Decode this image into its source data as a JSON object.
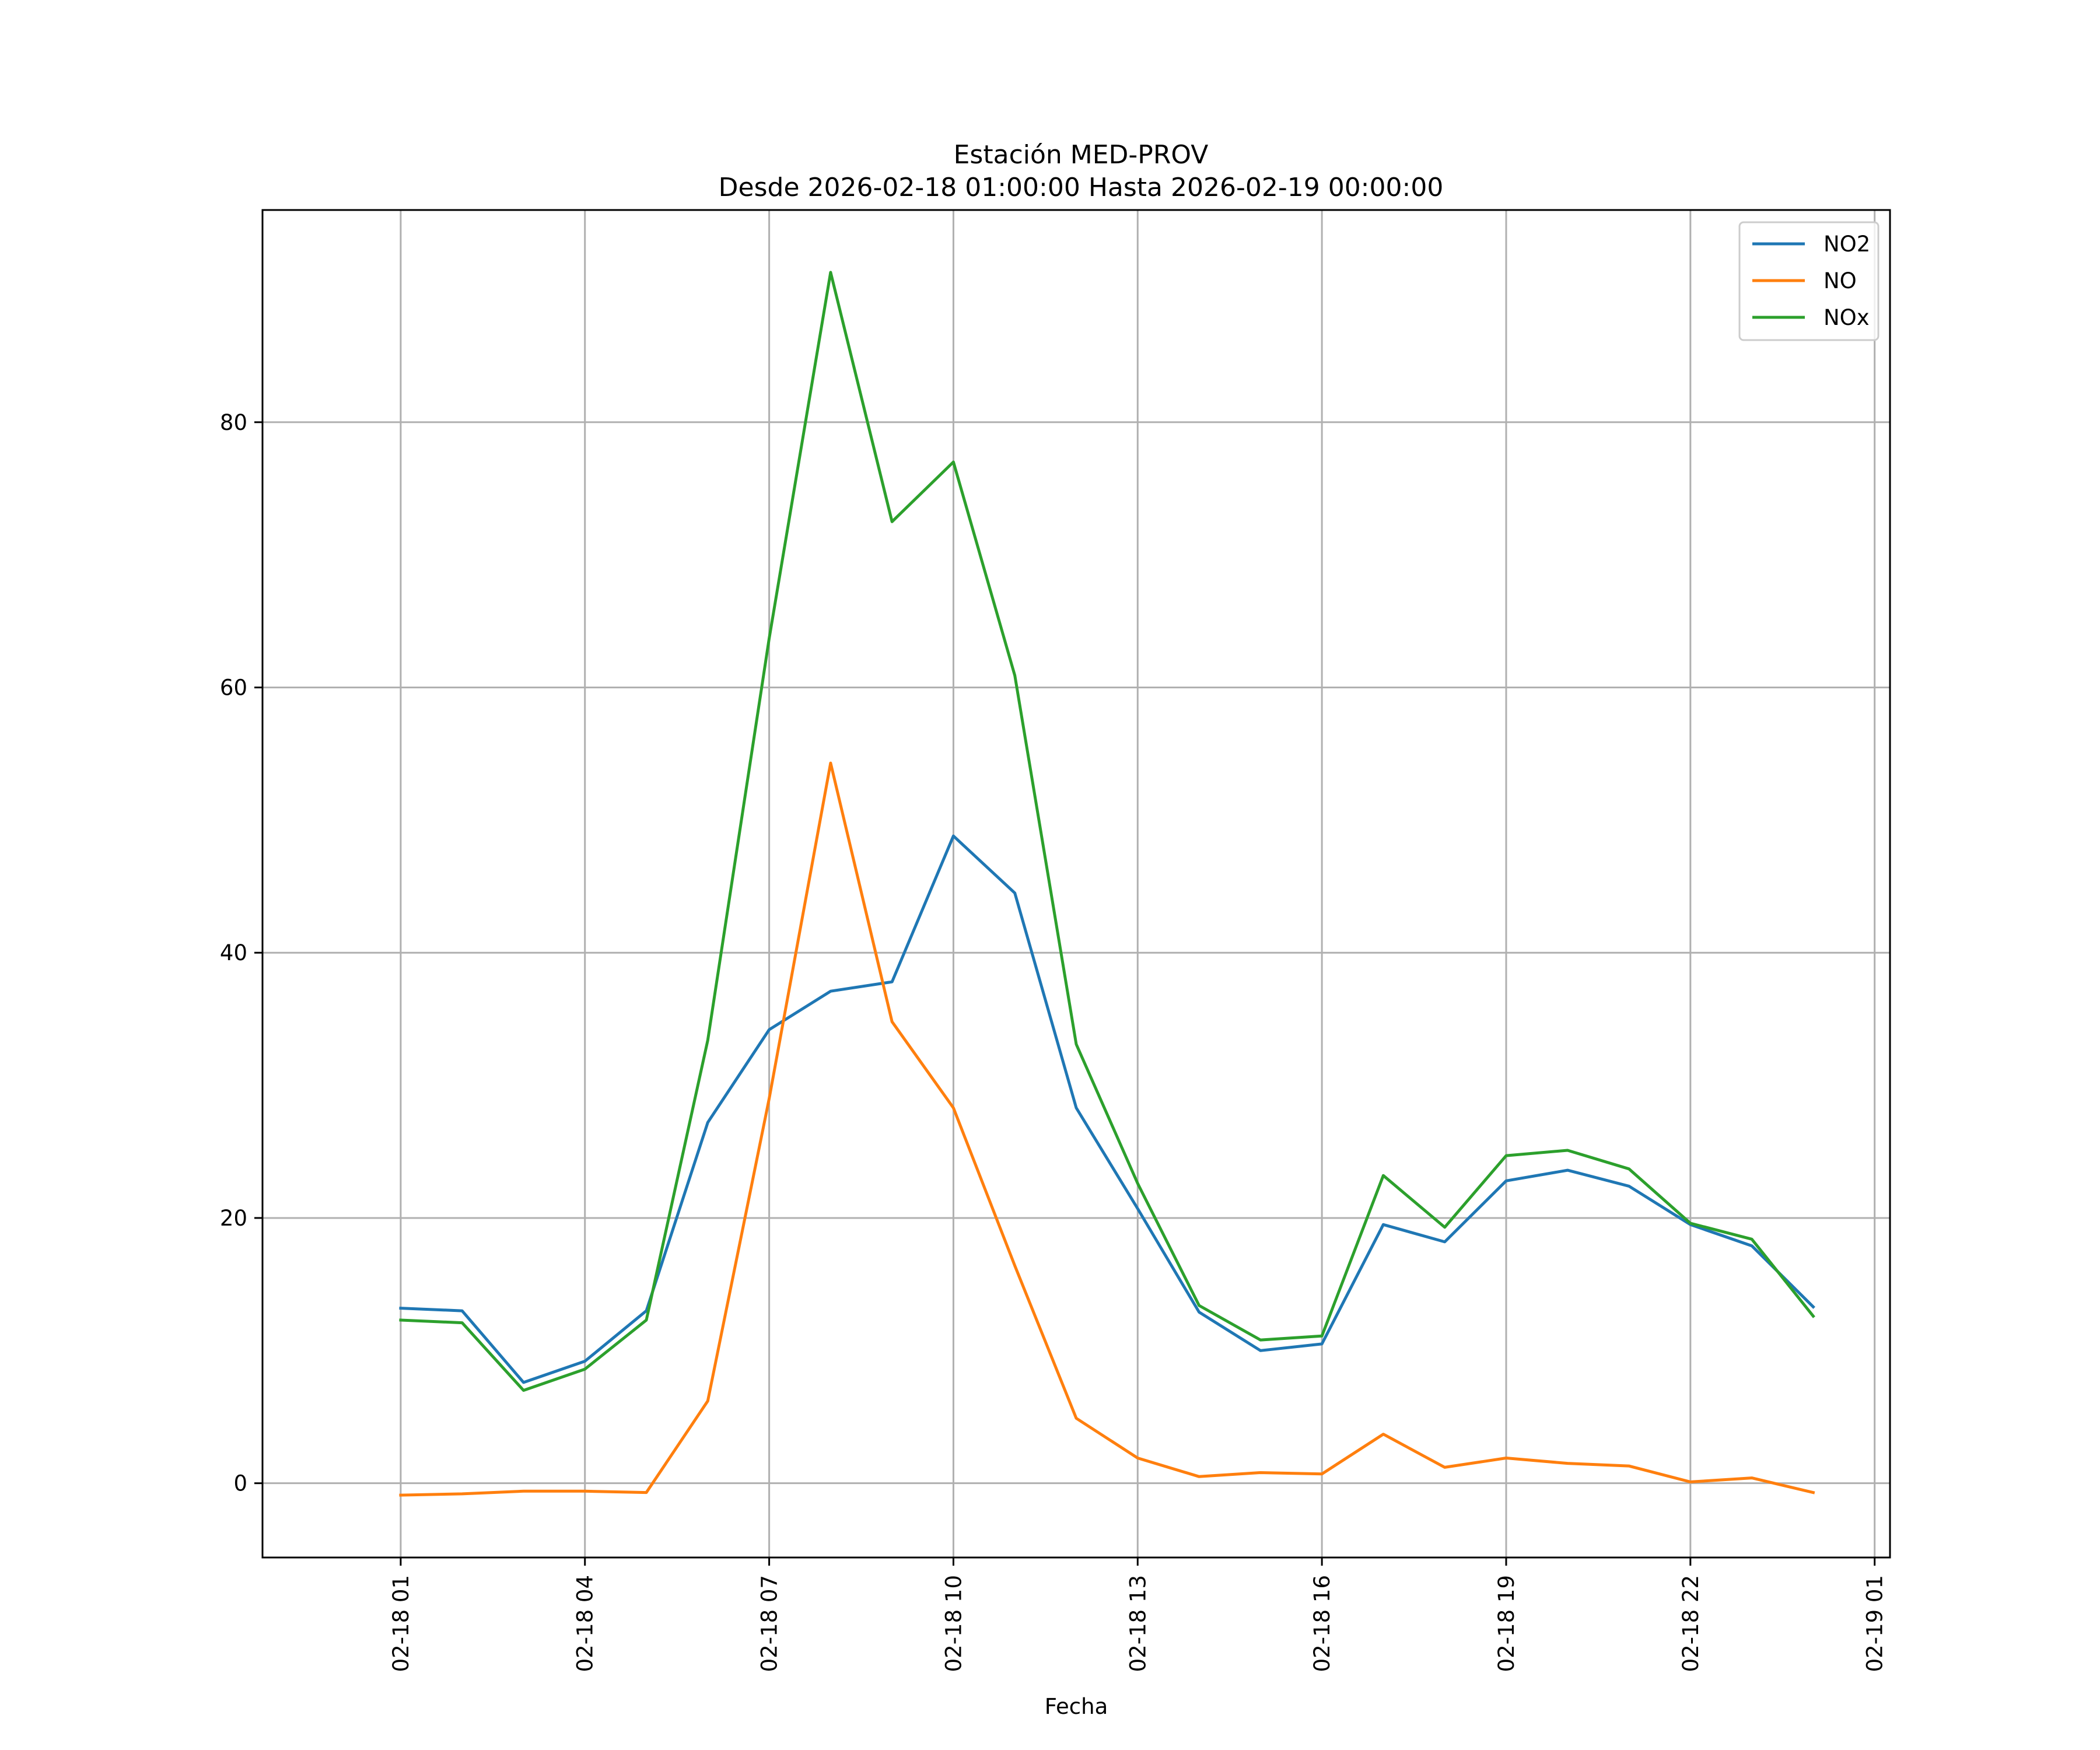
{
  "chart_data": {
    "type": "line",
    "title": "Estación MED-PROV",
    "subtitle": "Desde 2026-02-18 01:00:00 Hasta 2026-02-19 00:00:00",
    "xlabel": "Fecha",
    "ylabel": "",
    "x": [
      "2026-02-18 01:00",
      "2026-02-18 02:00",
      "2026-02-18 03:00",
      "2026-02-18 04:00",
      "2026-02-18 05:00",
      "2026-02-18 06:00",
      "2026-02-18 07:00",
      "2026-02-18 08:00",
      "2026-02-18 09:00",
      "2026-02-18 10:00",
      "2026-02-18 11:00",
      "2026-02-18 12:00",
      "2026-02-18 13:00",
      "2026-02-18 14:00",
      "2026-02-18 15:00",
      "2026-02-18 16:00",
      "2026-02-18 17:00",
      "2026-02-18 18:00",
      "2026-02-18 19:00",
      "2026-02-18 20:00",
      "2026-02-18 21:00",
      "2026-02-18 22:00",
      "2026-02-18 23:00",
      "2026-02-19 00:00"
    ],
    "x_ticks": [
      "02-18 01",
      "02-18 04",
      "02-18 07",
      "02-18 10",
      "02-18 13",
      "02-18 16",
      "02-18 19",
      "02-18 22",
      "02-19 01"
    ],
    "x_tick_times": [
      "2026-02-18 01:00",
      "2026-02-18 04:00",
      "2026-02-18 07:00",
      "2026-02-18 10:00",
      "2026-02-18 13:00",
      "2026-02-18 16:00",
      "2026-02-18 19:00",
      "2026-02-18 22:00",
      "2026-02-19 01:00"
    ],
    "xlim": [
      "2026-02-17 22:45",
      "2026-02-19 01:15"
    ],
    "y_ticks": [
      0,
      20,
      40,
      60,
      80
    ],
    "ylim": [
      -5.6,
      96
    ],
    "grid": true,
    "legend_position": "top-right",
    "series": [
      {
        "name": "NO2",
        "color": "#1f77b4",
        "values": [
          13.2,
          13.0,
          7.6,
          9.2,
          13.0,
          27.2,
          34.2,
          37.1,
          37.8,
          48.8,
          44.5,
          28.3,
          20.7,
          12.9,
          10.0,
          10.5,
          19.5,
          18.2,
          22.8,
          23.6,
          22.4,
          19.5,
          17.9,
          13.3
        ]
      },
      {
        "name": "NO",
        "color": "#ff7f0e",
        "values": [
          -0.9,
          -0.8,
          -0.6,
          -0.6,
          -0.7,
          6.2,
          29.0,
          54.3,
          34.8,
          28.3,
          16.4,
          4.9,
          1.9,
          0.5,
          0.8,
          0.7,
          3.7,
          1.2,
          1.9,
          1.5,
          1.3,
          0.1,
          0.4,
          -0.7
        ]
      },
      {
        "name": "NOx",
        "color": "#2ca02c",
        "values": [
          12.3,
          12.1,
          7.0,
          8.6,
          12.3,
          33.4,
          63.7,
          91.3,
          72.5,
          77.0,
          60.9,
          33.1,
          22.6,
          13.4,
          10.8,
          11.1,
          23.2,
          19.3,
          24.7,
          25.1,
          23.7,
          19.6,
          18.4,
          12.6
        ]
      }
    ]
  }
}
